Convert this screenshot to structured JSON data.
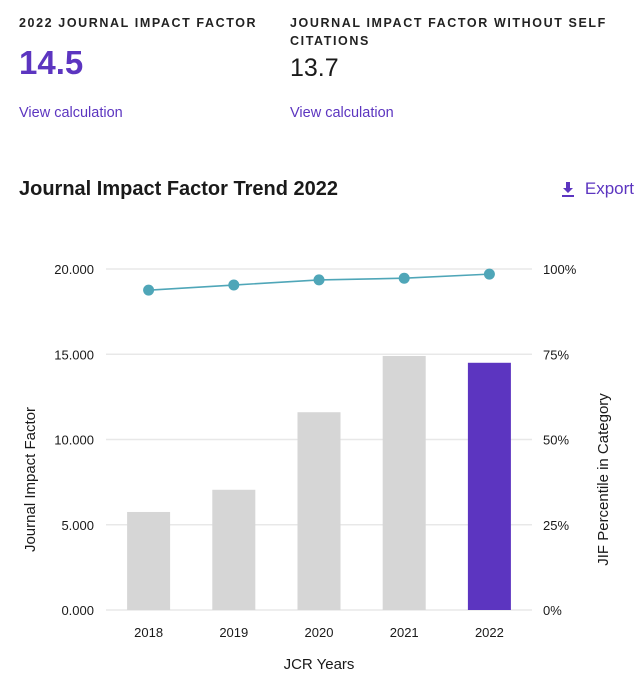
{
  "metrics": [
    {
      "label": "2022 Journal Impact Factor",
      "value": "14.5",
      "link": "View calculation"
    },
    {
      "label": "Journal Impact Factor without self citations",
      "value": "13.7",
      "link": "View calculation"
    }
  ],
  "section": {
    "title": "Journal Impact Factor Trend 2022",
    "export_label": "Export",
    "export_icon": "download-icon"
  },
  "colors": {
    "accent": "#5c35c0",
    "bar_default": "#d6d6d6",
    "bar_highlight": "#5c35c0",
    "line": "#4fa6b8",
    "grid": "#e8e8e8"
  },
  "chart_data": {
    "type": "bar",
    "title": "Journal Impact Factor Trend 2022",
    "xlabel": "JCR Years",
    "ylabel": "Journal Impact Factor",
    "y2label": "JIF Percentile in Category",
    "categories": [
      "2018",
      "2019",
      "2020",
      "2021",
      "2022"
    ],
    "ylim": [
      0,
      20
    ],
    "y_ticks": [
      0,
      5,
      10,
      15,
      20
    ],
    "y_tick_labels": [
      "0.000",
      "5.000",
      "10.000",
      "15.000",
      "20.000"
    ],
    "y2lim": [
      0,
      100
    ],
    "y2_ticks": [
      0,
      25,
      50,
      75,
      100
    ],
    "y2_tick_labels": [
      "0%",
      "25%",
      "50%",
      "75%",
      "100%"
    ],
    "grid": true,
    "highlight_category": "2022",
    "series": [
      {
        "name": "Journal Impact Factor",
        "type": "bar",
        "axis": "left",
        "values": [
          5.75,
          7.05,
          11.6,
          14.9,
          14.5
        ]
      },
      {
        "name": "JIF Percentile in Category",
        "type": "line",
        "axis": "right",
        "values": [
          93.8,
          95.3,
          96.8,
          97.3,
          98.5
        ]
      }
    ]
  }
}
